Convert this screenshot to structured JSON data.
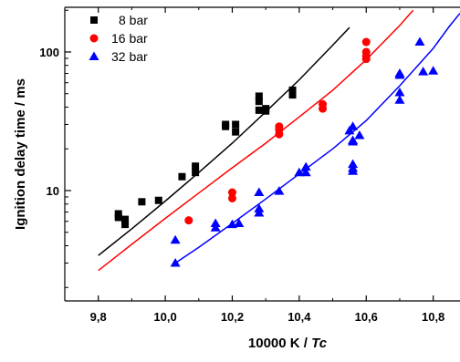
{
  "chart_data": {
    "type": "scatter",
    "title": "",
    "xlabel": "10000 K / ",
    "xlabel_italic": "Tc",
    "ylabel": "Ignition delay time / ms",
    "xlim": [
      9.7,
      10.88
    ],
    "ylim": [
      1.6,
      210
    ],
    "yscale": "log",
    "grid": false,
    "legend_position": "top-left",
    "x_ticks": [
      "9,8",
      "10,0",
      "10,2",
      "10,4",
      "10,6",
      "10,8"
    ],
    "x_tick_values": [
      9.8,
      10.0,
      10.2,
      10.4,
      10.6,
      10.8
    ],
    "y_ticks": [
      "10",
      "100"
    ],
    "y_tick_values": [
      10,
      100
    ],
    "series": [
      {
        "name": "8 bar",
        "color": "#000000",
        "marker": "square",
        "points": [
          [
            9.86,
            6.8
          ],
          [
            9.86,
            6.4
          ],
          [
            9.88,
            6.2
          ],
          [
            9.88,
            5.7
          ],
          [
            9.93,
            8.3
          ],
          [
            9.98,
            8.5
          ],
          [
            10.05,
            12.6
          ],
          [
            10.09,
            15.0
          ],
          [
            10.09,
            13.5
          ],
          [
            10.18,
            30.0
          ],
          [
            10.18,
            29.0
          ],
          [
            10.21,
            30.0
          ],
          [
            10.21,
            26.5
          ],
          [
            10.28,
            48.0
          ],
          [
            10.28,
            44.0
          ],
          [
            10.28,
            38.0
          ],
          [
            10.3,
            39.0
          ],
          [
            10.3,
            37.5
          ],
          [
            10.38,
            53.0
          ],
          [
            10.38,
            49.0
          ]
        ],
        "fit": [
          [
            9.8,
            3.4
          ],
          [
            9.9,
            5.3
          ],
          [
            10.0,
            8.4
          ],
          [
            10.1,
            13.5
          ],
          [
            10.2,
            22.0
          ],
          [
            10.3,
            37.0
          ],
          [
            10.4,
            63.0
          ],
          [
            10.5,
            112.0
          ],
          [
            10.55,
            150.0
          ]
        ]
      },
      {
        "name": "16 bar",
        "color": "#ff0000",
        "marker": "circle",
        "points": [
          [
            10.07,
            6.1
          ],
          [
            10.2,
            9.7
          ],
          [
            10.2,
            8.8
          ],
          [
            10.34,
            29.0
          ],
          [
            10.34,
            27.5
          ],
          [
            10.34,
            25.5
          ],
          [
            10.47,
            42.0
          ],
          [
            10.47,
            39.0
          ],
          [
            10.6,
            118.0
          ],
          [
            10.6,
            100.0
          ],
          [
            10.6,
            93.0
          ],
          [
            10.6,
            89.0
          ]
        ],
        "fit": [
          [
            9.8,
            2.65
          ],
          [
            9.9,
            4.1
          ],
          [
            10.0,
            6.3
          ],
          [
            10.1,
            9.6
          ],
          [
            10.2,
            14.6
          ],
          [
            10.3,
            22.0
          ],
          [
            10.4,
            34.0
          ],
          [
            10.5,
            53.0
          ],
          [
            10.6,
            88.0
          ],
          [
            10.7,
            155.0
          ],
          [
            10.74,
            200.0
          ]
        ]
      },
      {
        "name": "32 bar",
        "color": "#0000ff",
        "marker": "triangle",
        "points": [
          [
            10.03,
            4.4
          ],
          [
            10.03,
            3.0
          ],
          [
            10.15,
            5.8
          ],
          [
            10.15,
            5.4
          ],
          [
            10.2,
            5.7
          ],
          [
            10.22,
            5.8
          ],
          [
            10.28,
            9.7
          ],
          [
            10.28,
            7.4
          ],
          [
            10.28,
            6.9
          ],
          [
            10.34,
            9.9
          ],
          [
            10.4,
            13.5
          ],
          [
            10.42,
            14.8
          ],
          [
            10.42,
            13.5
          ],
          [
            10.55,
            27.0
          ],
          [
            10.56,
            29.0
          ],
          [
            10.56,
            23.0
          ],
          [
            10.56,
            22.5
          ],
          [
            10.56,
            15.5
          ],
          [
            10.56,
            14.5
          ],
          [
            10.56,
            13.8
          ],
          [
            10.58,
            25.0
          ],
          [
            10.7,
            70.0
          ],
          [
            10.7,
            68.0
          ],
          [
            10.7,
            51.0
          ],
          [
            10.7,
            45.0
          ],
          [
            10.76,
            118.0
          ],
          [
            10.77,
            72.0
          ],
          [
            10.8,
            73.0
          ]
        ],
        "fit": [
          [
            10.03,
            3.0
          ],
          [
            10.1,
            3.9
          ],
          [
            10.2,
            5.8
          ],
          [
            10.3,
            8.7
          ],
          [
            10.4,
            13.2
          ],
          [
            10.5,
            20.0
          ],
          [
            10.6,
            32.0
          ],
          [
            10.7,
            57.0
          ],
          [
            10.8,
            106.0
          ],
          [
            10.85,
            155.0
          ],
          [
            10.88,
            190.0
          ]
        ]
      }
    ]
  }
}
